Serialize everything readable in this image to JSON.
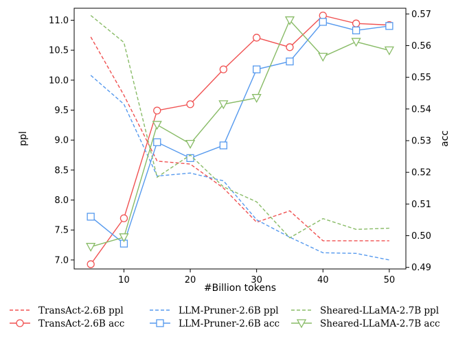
{
  "chart_data": {
    "type": "line",
    "xlabel": "#Billion tokens",
    "ylabel_left": "ppl",
    "ylabel_right": "acc",
    "xlim": [
      2.5,
      52.5
    ],
    "ylim_left": [
      6.85,
      11.2
    ],
    "ylim_right": [
      0.4895,
      0.5718
    ],
    "x_ticks": [
      10,
      20,
      30,
      40,
      50
    ],
    "y_left_ticks": [
      7.0,
      7.5,
      8.0,
      8.5,
      9.0,
      9.5,
      10.0,
      10.5,
      11.0
    ],
    "y_left_tick_labels": [
      "7.0",
      "7.5",
      "8.0",
      "8.5",
      "9.0",
      "9.5",
      "10.0",
      "10.5",
      "11.0"
    ],
    "y_right_ticks": [
      0.49,
      0.5,
      0.51,
      0.52,
      0.53,
      0.54,
      0.55,
      0.56,
      0.57
    ],
    "y_right_tick_labels": [
      "0.49",
      "0.50",
      "0.51",
      "0.52",
      "0.53",
      "0.54",
      "0.55",
      "0.56",
      "0.57"
    ],
    "legend_position": "bottom",
    "series": [
      {
        "name": "TransAct-2.6B ppl",
        "axis": "left",
        "style": "dashed",
        "marker": "none",
        "color": "#f05050",
        "x": [
          5,
          10,
          15,
          20,
          25,
          30,
          35,
          40,
          45,
          50
        ],
        "y": [
          10.72,
          9.75,
          8.65,
          8.6,
          8.2,
          7.63,
          7.82,
          7.32,
          7.32,
          7.32
        ]
      },
      {
        "name": "TransAct-2.6B acc",
        "axis": "right",
        "style": "solid",
        "marker": "circle",
        "color": "#f05050",
        "x": [
          5,
          10,
          15,
          20,
          25,
          30,
          35,
          40,
          45,
          50
        ],
        "y": [
          0.491,
          0.5055,
          0.5395,
          0.5415,
          0.5525,
          0.5625,
          0.5595,
          0.5695,
          0.567,
          0.5665
        ]
      },
      {
        "name": "LLM-Pruner-2.6B ppl",
        "axis": "left",
        "style": "dashed",
        "marker": "none",
        "color": "#5599ee",
        "x": [
          5,
          10,
          15,
          20,
          25,
          30,
          35,
          40,
          45,
          50
        ],
        "y": [
          10.08,
          9.6,
          8.4,
          8.45,
          8.32,
          7.67,
          7.38,
          7.12,
          7.11,
          7.0
        ]
      },
      {
        "name": "LLM-Pruner-2.6B acc",
        "axis": "right",
        "style": "solid",
        "marker": "square",
        "color": "#5599ee",
        "x": [
          5,
          10,
          15,
          20,
          25,
          30,
          35,
          40,
          45,
          50
        ],
        "y": [
          0.506,
          0.4975,
          0.5295,
          0.5245,
          0.5285,
          0.5525,
          0.555,
          0.5675,
          0.5648,
          0.5662
        ]
      },
      {
        "name": "Sheared-LLaMA-2.7B ppl",
        "axis": "left",
        "style": "dashed",
        "marker": "none",
        "color": "#88bb66",
        "x": [
          5,
          10,
          15,
          20,
          25,
          30,
          35,
          40,
          45,
          50
        ],
        "y": [
          11.08,
          10.63,
          8.38,
          8.75,
          8.22,
          7.97,
          7.37,
          7.69,
          7.51,
          7.53
        ]
      },
      {
        "name": "Sheared-LLaMA-2.7B acc",
        "axis": "right",
        "style": "solid",
        "marker": "triangle-down",
        "color": "#88bb66",
        "x": [
          5,
          10,
          15,
          20,
          25,
          30,
          35,
          40,
          45,
          50
        ],
        "y": [
          0.4965,
          0.4995,
          0.535,
          0.529,
          0.5415,
          0.5435,
          0.568,
          0.5565,
          0.5612,
          0.5585
        ]
      }
    ]
  }
}
